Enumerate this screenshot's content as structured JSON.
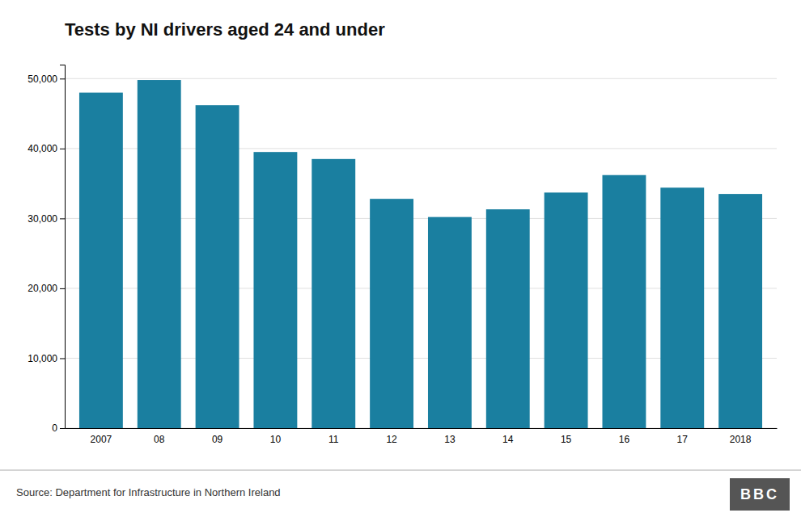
{
  "chart_data": {
    "type": "bar",
    "title": "Tests by NI drivers aged 24 and under",
    "categories": [
      "2007",
      "08",
      "09",
      "10",
      "11",
      "12",
      "13",
      "14",
      "15",
      "16",
      "17",
      "2018"
    ],
    "values": [
      48000,
      49800,
      46200,
      39500,
      38500,
      32800,
      30200,
      31300,
      33700,
      36200,
      34400,
      33500
    ],
    "color": "#1a7fa0",
    "ylim": [
      0,
      52000
    ],
    "yticks": [
      0,
      {
        "value": 10000,
        "label": "10,000"
      },
      {
        "value": 20000,
        "label": "20,000"
      },
      {
        "value": 30000,
        "label": "30,000"
      },
      {
        "value": 40000,
        "label": "40,000"
      },
      {
        "value": 50000,
        "label": "50,000"
      }
    ],
    "grid": true,
    "annotations": [
      "Source: Department for Infrastructure in Northern Ireland",
      "BBC"
    ]
  }
}
